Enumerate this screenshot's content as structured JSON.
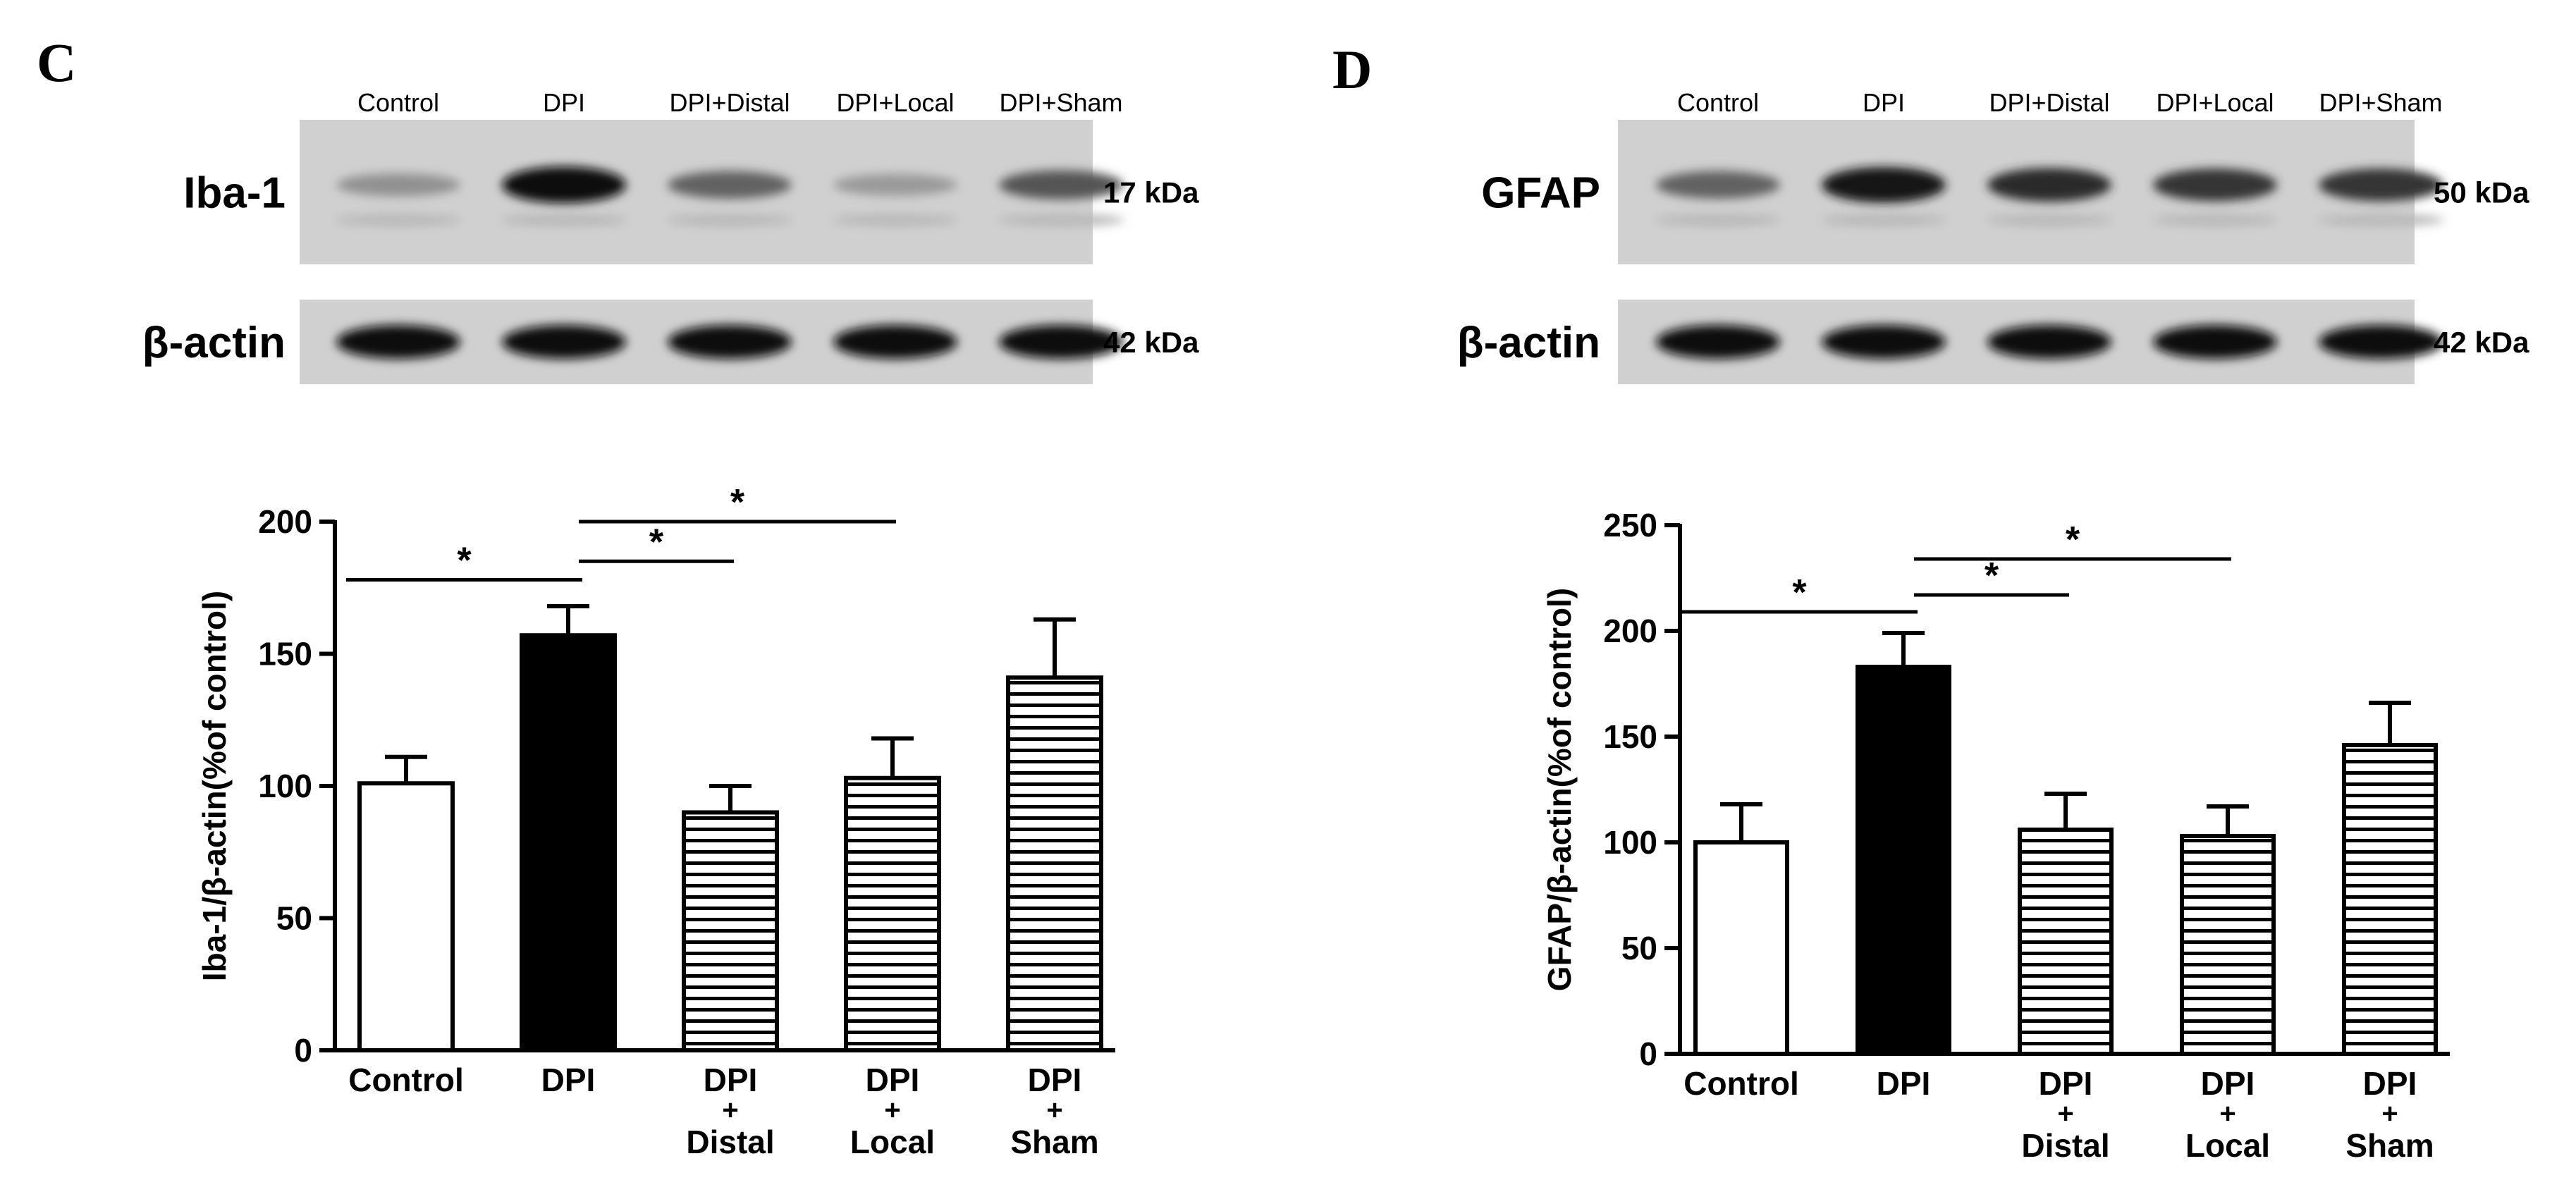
{
  "panels": [
    {
      "letter": "C",
      "blot": {
        "lanes": [
          "Control",
          "DPI",
          "DPI+Distal",
          "DPI+Local",
          "DPI+Sham"
        ],
        "rows": [
          {
            "label": "Iba-1",
            "size": "17 kDa",
            "band_intensity": [
              0.3,
              1.0,
              0.55,
              0.25,
              0.62
            ]
          },
          {
            "label": "β-actin",
            "size": "42 kDa",
            "band_intensity": [
              1.0,
              1.0,
              1.0,
              1.0,
              1.0
            ]
          }
        ]
      },
      "chart_data": {
        "type": "bar",
        "categories": [
          [
            "Control"
          ],
          [
            "DPI"
          ],
          [
            "DPI",
            "+",
            "Distal"
          ],
          [
            "DPI",
            "+",
            "Local"
          ],
          [
            "DPI",
            "+",
            "Sham"
          ]
        ],
        "values": [
          101,
          157,
          90,
          103,
          141
        ],
        "errors": [
          10,
          11,
          10,
          15,
          22
        ],
        "fills": [
          "white",
          "black",
          "hlines",
          "hlines",
          "hlines"
        ],
        "ylabel": "Iba-1/β-actin(%of control)",
        "ylim": [
          0,
          200
        ],
        "yticks": [
          0,
          50,
          100,
          150,
          200
        ],
        "significance": [
          {
            "from": 0,
            "to": 1,
            "label": "*",
            "y": 178
          },
          {
            "from": 1,
            "to": 2,
            "label": "*",
            "y": 185
          },
          {
            "from": 1,
            "to": 3,
            "label": "*",
            "y": 200
          }
        ]
      }
    },
    {
      "letter": "D",
      "blot": {
        "lanes": [
          "Control",
          "DPI",
          "DPI+Distal",
          "DPI+Local",
          "DPI+Sham"
        ],
        "rows": [
          {
            "label": "GFAP",
            "size": "50 kDa",
            "band_intensity": [
              0.55,
              0.95,
              0.85,
              0.8,
              0.8
            ]
          },
          {
            "label": "β-actin",
            "size": "42 kDa",
            "band_intensity": [
              1.0,
              1.0,
              1.0,
              1.0,
              1.0
            ]
          }
        ]
      },
      "chart_data": {
        "type": "bar",
        "categories": [
          [
            "Control"
          ],
          [
            "DPI"
          ],
          [
            "DPI",
            "+",
            "Distal"
          ],
          [
            "DPI",
            "+",
            "Local"
          ],
          [
            "DPI",
            "+",
            "Sham"
          ]
        ],
        "values": [
          100,
          183,
          106,
          103,
          146
        ],
        "errors": [
          18,
          16,
          17,
          14,
          20
        ],
        "fills": [
          "white",
          "black",
          "hlines",
          "hlines",
          "hlines"
        ],
        "ylabel": "GFAP/β-actin(%of control)",
        "ylim": [
          0,
          250
        ],
        "yticks": [
          0,
          50,
          100,
          150,
          200,
          250
        ],
        "significance": [
          {
            "from": 0,
            "to": 1,
            "label": "*",
            "y": 209
          },
          {
            "from": 1,
            "to": 2,
            "label": "*",
            "y": 217
          },
          {
            "from": 1,
            "to": 3,
            "label": "*",
            "y": 234
          }
        ]
      }
    }
  ]
}
